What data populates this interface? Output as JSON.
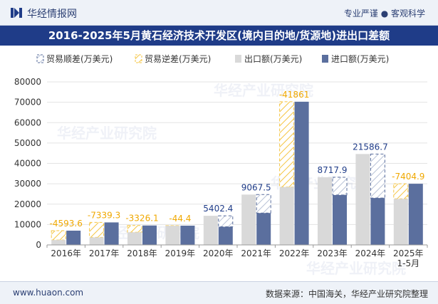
{
  "header": {
    "brand": "华经情报网",
    "tags": "专业严谨 ● 客观科学"
  },
  "title": "2016-2025年5月黄石经济技术开发区(境内目的地/货源地)进出口差额",
  "footer": {
    "url": "www.huaon.com",
    "source": "数据来源：中国海关，华经产业研究院整理"
  },
  "watermark": "华经产业研究院",
  "colors": {
    "export": "#d9d9d9",
    "import": "#5b6f9e",
    "surplus_edge": "#5b6f9e",
    "deficit_edge": "#f5c542",
    "surplus_label": "#1f3c88",
    "deficit_label": "#f0a800",
    "header_bg": "#1f3c88"
  },
  "chart_data": {
    "type": "bar",
    "categories": [
      "2016年",
      "2017年",
      "2018年",
      "2019年",
      "2020年",
      "2021年",
      "2022年",
      "2023年",
      "2024年",
      "2025年\n1-5月"
    ],
    "ylim": [
      0,
      80000
    ],
    "yticks": [
      0,
      10000,
      20000,
      30000,
      40000,
      50000,
      60000,
      70000,
      80000
    ],
    "legend": [
      {
        "key": "surplus",
        "label": "贸易顺差(万美元)"
      },
      {
        "key": "deficit",
        "label": "贸易逆差(万美元)"
      },
      {
        "key": "export",
        "label": "出口额(万美元)"
      },
      {
        "key": "import",
        "label": "进口额(万美元)"
      }
    ],
    "series": [
      {
        "name": "出口额(万美元)",
        "values": [
          2400,
          3700,
          6200,
          9400,
          14300,
          24700,
          28400,
          33200,
          44600,
          22600
        ]
      },
      {
        "name": "进口额(万美元)",
        "values": [
          6993.6,
          11039.3,
          9526.1,
          9444.4,
          8897.6,
          15632.5,
          70261,
          24482.1,
          23013.3,
          30004.9
        ]
      }
    ],
    "balance_labels": [
      "-4593.6",
      "-7339.3",
      "-3326.1",
      "-44.4",
      "5402.4",
      "9067.5",
      "-41861",
      "8717.9",
      "21586.7",
      "-7404.9"
    ]
  }
}
